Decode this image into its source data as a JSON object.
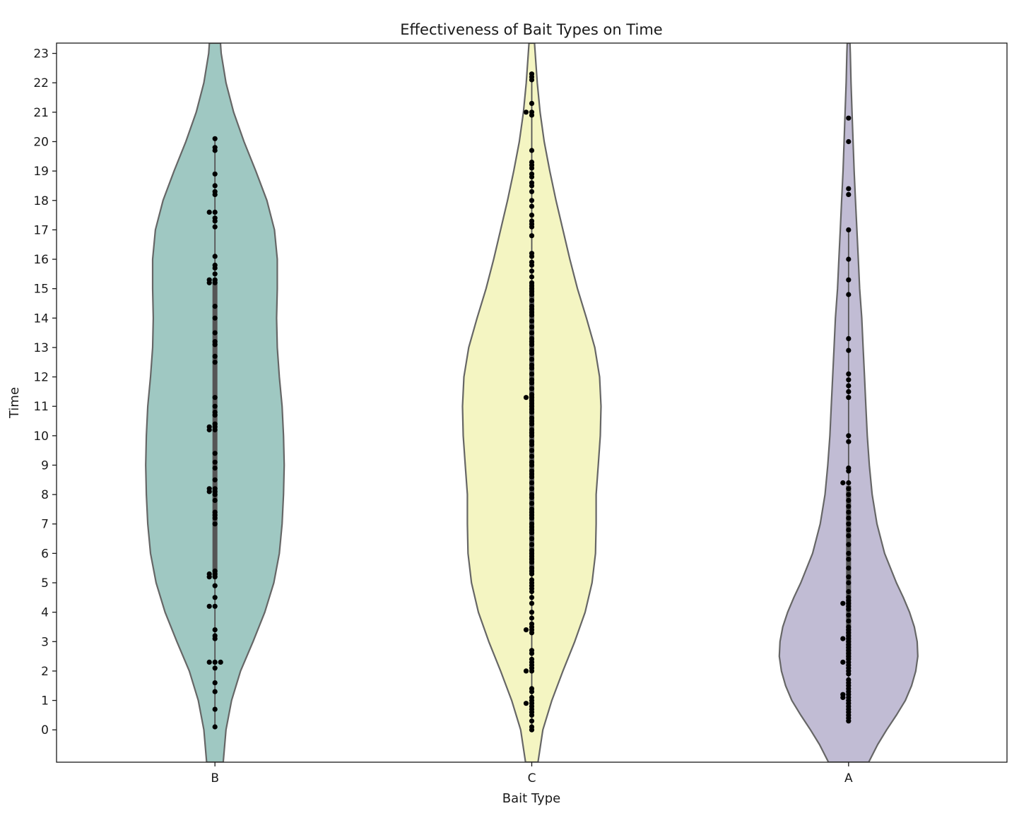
{
  "chart_data": {
    "type": "violin",
    "title": "Effectiveness of Bait Types on Time",
    "xlabel": "Bait Type",
    "ylabel": "Time",
    "categories": [
      "B",
      "C",
      "A"
    ],
    "ylim": [
      -1.1,
      23.35
    ],
    "yticks": [
      0,
      1,
      2,
      3,
      4,
      5,
      6,
      7,
      8,
      9,
      10,
      11,
      12,
      13,
      14,
      15,
      16,
      17,
      18,
      19,
      20,
      21,
      22,
      23
    ],
    "grid": false,
    "legend": "none",
    "series": [
      {
        "category": "B",
        "color": "#9fc8c2",
        "quartiles": [
          5.2,
          10.3,
          15.3
        ],
        "whiskers": [
          0.1,
          20.1
        ],
        "profile": [
          [
            -1.1,
            0.12
          ],
          [
            0,
            0.16
          ],
          [
            1,
            0.24
          ],
          [
            2,
            0.37
          ],
          [
            3,
            0.55
          ],
          [
            4,
            0.72
          ],
          [
            5,
            0.85
          ],
          [
            6,
            0.93
          ],
          [
            7,
            0.97
          ],
          [
            8,
            0.99
          ],
          [
            9,
            1.0
          ],
          [
            10,
            0.99
          ],
          [
            11,
            0.97
          ],
          [
            12,
            0.93
          ],
          [
            13,
            0.9
          ],
          [
            14,
            0.89
          ],
          [
            15,
            0.9
          ],
          [
            16,
            0.9
          ],
          [
            17,
            0.86
          ],
          [
            18,
            0.75
          ],
          [
            19,
            0.59
          ],
          [
            20,
            0.42
          ],
          [
            21,
            0.27
          ],
          [
            22,
            0.16
          ],
          [
            23,
            0.09
          ],
          [
            23.35,
            0.08
          ]
        ],
        "points": [
          0.1,
          0.7,
          1.3,
          1.6,
          2.1,
          2.3,
          2.3,
          2.3,
          3.1,
          3.2,
          3.4,
          4.2,
          4.2,
          4.5,
          4.9,
          5.2,
          5.2,
          5.3,
          5.3,
          5.4,
          7.0,
          7.2,
          7.3,
          7.4,
          7.8,
          8.0,
          8.1,
          8.1,
          8.2,
          8.2,
          8.5,
          8.9,
          9.1,
          9.4,
          10.2,
          10.2,
          10.3,
          10.3,
          10.4,
          10.7,
          10.8,
          11.0,
          11.3,
          12.5,
          12.7,
          13.1,
          13.2,
          13.5,
          14.0,
          14.4,
          15.2,
          15.2,
          15.3,
          15.3,
          15.5,
          15.7,
          15.8,
          16.1,
          17.1,
          17.3,
          17.4,
          17.6,
          17.6,
          18.2,
          18.3,
          18.5,
          18.9,
          19.7,
          19.8,
          20.1
        ]
      },
      {
        "category": "C",
        "color": "#f4f5c2",
        "quartiles": [
          5.3,
          10.3,
          15.2
        ],
        "whiskers": [
          0.0,
          22.3
        ],
        "profile": [
          [
            -1.1,
            0.09
          ],
          [
            0,
            0.16
          ],
          [
            1,
            0.29
          ],
          [
            2,
            0.45
          ],
          [
            3,
            0.62
          ],
          [
            4,
            0.77
          ],
          [
            5,
            0.87
          ],
          [
            6,
            0.92
          ],
          [
            7,
            0.93
          ],
          [
            8,
            0.93
          ],
          [
            9,
            0.96
          ],
          [
            10,
            0.99
          ],
          [
            11,
            1.0
          ],
          [
            12,
            0.98
          ],
          [
            13,
            0.91
          ],
          [
            14,
            0.79
          ],
          [
            15,
            0.66
          ],
          [
            16,
            0.55
          ],
          [
            17,
            0.45
          ],
          [
            18,
            0.35
          ],
          [
            19,
            0.26
          ],
          [
            20,
            0.18
          ],
          [
            21,
            0.12
          ],
          [
            22,
            0.08
          ],
          [
            23,
            0.05
          ],
          [
            23.35,
            0.04
          ]
        ],
        "points": [
          0.0,
          0.1,
          0.3,
          0.5,
          0.6,
          0.7,
          0.8,
          0.9,
          0.9,
          1.0,
          1.1,
          1.3,
          1.4,
          2.0,
          2.0,
          2.1,
          2.2,
          2.3,
          2.4,
          2.6,
          2.7,
          3.3,
          3.4,
          3.4,
          3.5,
          3.6,
          3.8,
          4.0,
          4.3,
          4.5,
          4.7,
          4.8,
          4.9,
          5.0,
          5.1,
          5.3,
          5.4,
          5.5,
          5.7,
          5.8,
          5.9,
          6.0,
          6.1,
          6.3,
          6.5,
          6.7,
          6.8,
          6.9,
          7.0,
          7.2,
          7.3,
          7.4,
          7.5,
          7.7,
          7.9,
          8.0,
          8.2,
          8.4,
          8.6,
          8.7,
          8.8,
          9.0,
          9.1,
          9.3,
          9.5,
          9.7,
          9.8,
          10.0,
          10.1,
          10.2,
          10.4,
          10.5,
          10.6,
          10.8,
          10.9,
          11.0,
          11.1,
          11.2,
          11.3,
          11.3,
          11.4,
          11.6,
          11.8,
          11.9,
          12.1,
          12.3,
          12.4,
          12.6,
          12.8,
          12.9,
          13.1,
          13.2,
          13.3,
          13.5,
          13.7,
          13.9,
          14.1,
          14.2,
          14.3,
          14.4,
          14.6,
          14.8,
          14.9,
          15.0,
          15.1,
          15.2,
          15.4,
          15.6,
          15.8,
          15.9,
          16.1,
          16.2,
          16.8,
          17.1,
          17.2,
          17.3,
          17.5,
          17.8,
          18.0,
          18.3,
          18.5,
          18.6,
          18.8,
          18.9,
          19.1,
          19.2,
          19.3,
          19.7,
          20.9,
          21.0,
          21.0,
          21.3,
          22.1,
          22.2,
          22.3
        ]
      },
      {
        "category": "A",
        "color": "#c1bcd4",
        "quartiles": [
          2.4,
          4.2,
          8.3
        ],
        "whiskers": [
          0.3,
          17.0
        ],
        "profile": [
          [
            -1.1,
            0.29
          ],
          [
            -0.5,
            0.42
          ],
          [
            0,
            0.55
          ],
          [
            0.5,
            0.69
          ],
          [
            1,
            0.82
          ],
          [
            1.5,
            0.91
          ],
          [
            2,
            0.97
          ],
          [
            2.5,
            1.0
          ],
          [
            3,
            0.99
          ],
          [
            3.5,
            0.95
          ],
          [
            4,
            0.88
          ],
          [
            4.5,
            0.79
          ],
          [
            5,
            0.69
          ],
          [
            6,
            0.52
          ],
          [
            7,
            0.41
          ],
          [
            8,
            0.34
          ],
          [
            9,
            0.3
          ],
          [
            10,
            0.27
          ],
          [
            11,
            0.25
          ],
          [
            12,
            0.23
          ],
          [
            13,
            0.21
          ],
          [
            14,
            0.19
          ],
          [
            15,
            0.16
          ],
          [
            16,
            0.14
          ],
          [
            17,
            0.12
          ],
          [
            18,
            0.1
          ],
          [
            19,
            0.08
          ],
          [
            20,
            0.065
          ],
          [
            21,
            0.05
          ],
          [
            22,
            0.035
          ],
          [
            23,
            0.025
          ],
          [
            23.35,
            0.02
          ]
        ],
        "points": [
          0.3,
          0.4,
          0.5,
          0.6,
          0.7,
          0.8,
          0.9,
          1.0,
          1.1,
          1.1,
          1.2,
          1.2,
          1.3,
          1.4,
          1.5,
          1.6,
          1.7,
          1.9,
          2.0,
          2.1,
          2.2,
          2.3,
          2.3,
          2.4,
          2.5,
          2.6,
          2.7,
          2.8,
          2.9,
          3.0,
          3.1,
          3.1,
          3.2,
          3.3,
          3.4,
          3.5,
          3.7,
          3.9,
          4.1,
          4.2,
          4.3,
          4.3,
          4.4,
          4.5,
          4.7,
          5.0,
          5.2,
          5.5,
          5.8,
          6.0,
          6.3,
          6.6,
          6.8,
          7.0,
          7.2,
          7.4,
          7.6,
          7.8,
          8.0,
          8.2,
          8.4,
          8.4,
          8.8,
          8.9,
          9.8,
          10.0,
          11.3,
          11.5,
          11.7,
          11.9,
          12.1,
          12.9,
          13.3,
          14.8,
          15.3,
          16.0,
          17.0,
          18.2,
          18.4,
          20.0,
          20.8
        ]
      }
    ]
  }
}
